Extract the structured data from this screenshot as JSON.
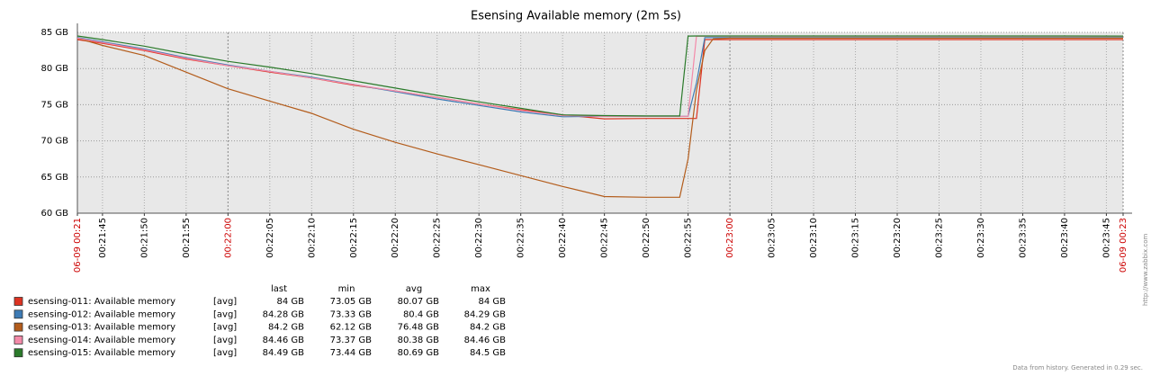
{
  "chart_data": {
    "type": "line",
    "title": "Esensing Available memory (2m 5s)",
    "x": [
      "00:21:42",
      "00:21:45",
      "00:21:50",
      "00:21:55",
      "00:22:00",
      "00:22:05",
      "00:22:10",
      "00:22:15",
      "00:22:20",
      "00:22:25",
      "00:22:30",
      "00:22:35",
      "00:22:40",
      "00:22:45",
      "00:22:50",
      "00:22:53",
      "00:22:54",
      "00:22:55",
      "00:22:56",
      "00:22:57",
      "00:22:58",
      "00:23:00",
      "00:23:10",
      "00:23:20",
      "00:23:30",
      "00:23:40",
      "00:23:47"
    ],
    "xlim": [
      "00:21:42",
      "00:23:47"
    ],
    "xticks": [
      {
        "value": "00:21:42",
        "label": "06-09 00:21"
      },
      "00:21:45",
      "00:21:50",
      "00:21:55",
      "00:22:00",
      "00:22:05",
      "00:22:10",
      "00:22:15",
      "00:22:20",
      "00:22:25",
      "00:22:30",
      "00:22:35",
      "00:22:40",
      "00:22:45",
      "00:22:50",
      "00:22:55",
      "00:23:00",
      "00:23:05",
      "00:23:10",
      "00:23:15",
      "00:23:20",
      "00:23:25",
      "00:23:30",
      "00:23:35",
      "00:23:40",
      "00:23:45",
      {
        "value": "00:23:47",
        "label": "06-09 00:23"
      }
    ],
    "ylim": [
      60,
      85
    ],
    "yticks": [
      {
        "value": 60,
        "label": "60 GB"
      },
      {
        "value": 65,
        "label": "65 GB"
      },
      {
        "value": 70,
        "label": "70 GB"
      },
      {
        "value": 75,
        "label": "75 GB"
      },
      {
        "value": 80,
        "label": "80 GB"
      },
      {
        "value": 85,
        "label": "85 GB"
      }
    ],
    "grid": true,
    "stat_headers": [
      "last",
      "min",
      "avg",
      "max"
    ],
    "series": [
      {
        "name": "esensing-011: Available memory",
        "color": "#dd3322",
        "function": "[avg]",
        "stats": [
          "84 GB",
          "73.05 GB",
          "80.07 GB",
          "84 GB"
        ],
        "values": [
          84.0,
          83.5,
          82.5,
          81.3,
          80.4,
          79.5,
          78.7,
          77.7,
          76.9,
          76.0,
          75.1,
          74.3,
          73.6,
          73.05,
          73.1,
          73.1,
          73.1,
          73.1,
          73.1,
          84.0,
          84.0,
          84.0,
          84.0,
          84.0,
          84.0,
          84.0,
          84.0
        ]
      },
      {
        "name": "esensing-012: Available memory",
        "color": "#3d7bb5",
        "function": "[avg]",
        "stats": [
          "84.28 GB",
          "73.33 GB",
          "80.4 GB",
          "84.29 GB"
        ],
        "values": [
          84.29,
          83.7,
          82.7,
          81.5,
          80.5,
          79.6,
          78.8,
          77.8,
          76.8,
          75.8,
          74.9,
          74.0,
          73.33,
          73.4,
          73.4,
          73.4,
          73.4,
          73.4,
          78.0,
          84.28,
          84.28,
          84.28,
          84.28,
          84.28,
          84.28,
          84.28,
          84.28
        ]
      },
      {
        "name": "esensing-013: Available memory",
        "color": "#b35c1b",
        "function": "[avg]",
        "stats": [
          "84.2 GB",
          "62.12 GB",
          "76.48 GB",
          "84.2 GB"
        ],
        "values": [
          84.2,
          83.2,
          81.8,
          79.5,
          77.2,
          75.5,
          73.8,
          71.6,
          69.8,
          68.2,
          66.7,
          65.2,
          63.7,
          62.3,
          62.2,
          62.2,
          62.2,
          67.5,
          77.0,
          82.5,
          84.1,
          84.2,
          84.2,
          84.2,
          84.2,
          84.2,
          84.2
        ]
      },
      {
        "name": "esensing-014: Available memory",
        "color": "#f48aa9",
        "function": "[avg]",
        "stats": [
          "84.46 GB",
          "73.37 GB",
          "80.38 GB",
          "84.46 GB"
        ],
        "values": [
          84.2,
          83.6,
          82.6,
          81.4,
          80.4,
          79.6,
          78.7,
          77.8,
          76.9,
          76.0,
          75.1,
          74.2,
          73.5,
          73.4,
          73.4,
          73.4,
          73.4,
          73.4,
          84.46,
          84.46,
          84.46,
          84.46,
          84.46,
          84.46,
          84.46,
          84.46,
          84.46
        ]
      },
      {
        "name": "esensing-015: Available memory",
        "color": "#2a7a2a",
        "function": "[avg]",
        "stats": [
          "84.49 GB",
          "73.44 GB",
          "80.69 GB",
          "84.5 GB"
        ],
        "values": [
          84.5,
          84.0,
          83.1,
          82.0,
          81.0,
          80.2,
          79.3,
          78.3,
          77.3,
          76.3,
          75.4,
          74.5,
          73.6,
          73.5,
          73.44,
          73.44,
          73.44,
          84.49,
          84.5,
          84.5,
          84.5,
          84.5,
          84.5,
          84.5,
          84.5,
          84.5,
          84.49
        ]
      }
    ],
    "footnote": "Data from history. Generated in 0.29 sec.",
    "watermark": "http://www.zabbix.com"
  }
}
